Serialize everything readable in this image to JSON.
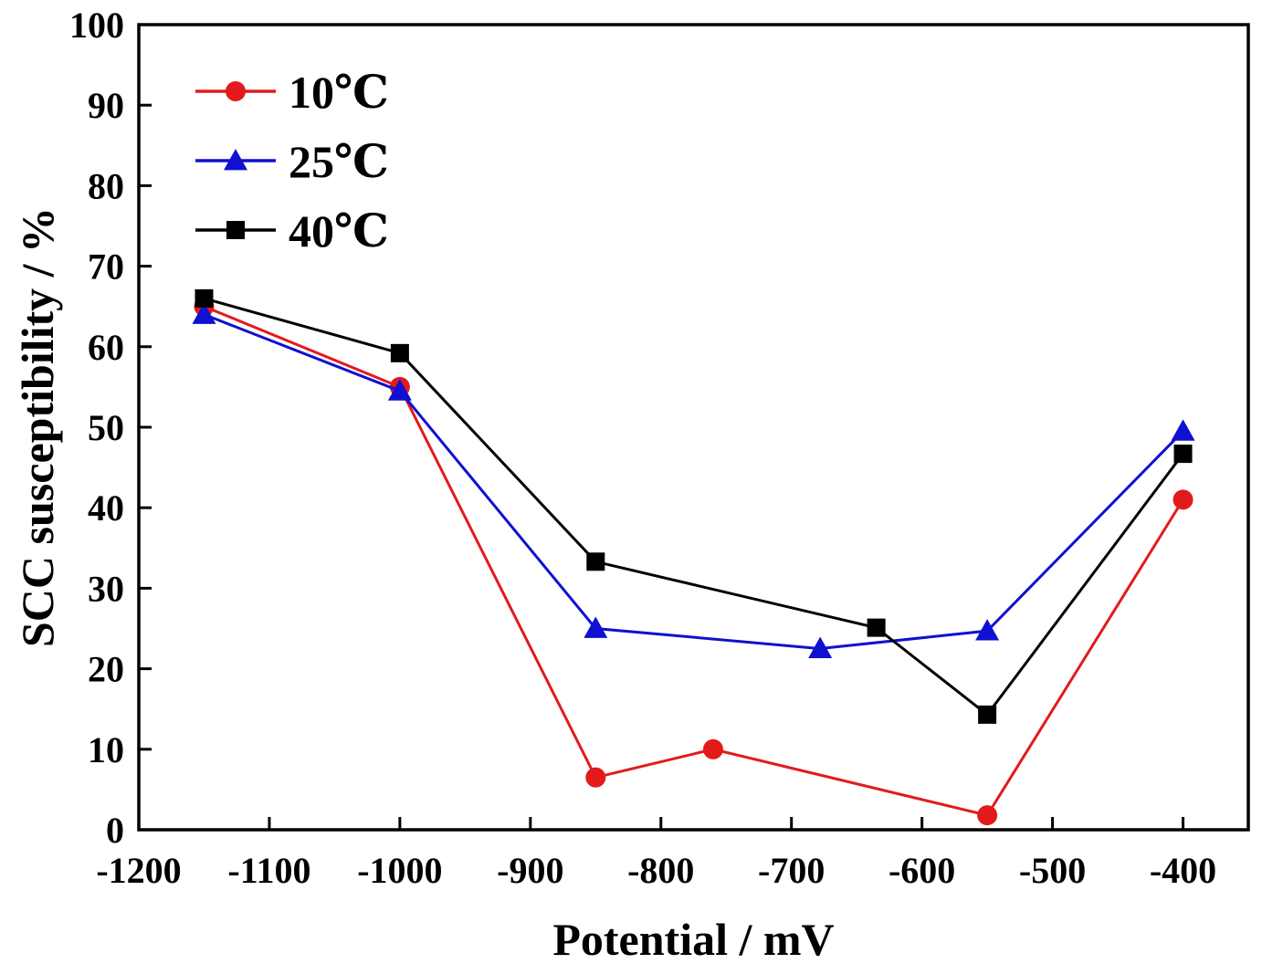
{
  "chart_data": {
    "type": "line",
    "title": "",
    "xlabel": "Potential / mV",
    "ylabel": "SCC susceptibility / %",
    "xlim": [
      -1200,
      -350
    ],
    "ylim": [
      0,
      100
    ],
    "xticks": [
      -1200,
      -1100,
      -1000,
      -900,
      -800,
      -700,
      -600,
      -500,
      -400
    ],
    "yticks": [
      0,
      10,
      20,
      30,
      40,
      50,
      60,
      70,
      80,
      90,
      100
    ],
    "legend_position": "top-left",
    "series": [
      {
        "name": "10℃",
        "color": "#e31a1c",
        "marker": "circle",
        "x": [
          -1150,
          -1000,
          -850,
          -760,
          -550,
          -400
        ],
        "y": [
          65,
          55,
          6.5,
          10,
          1.8,
          41
        ]
      },
      {
        "name": "25℃",
        "color": "#1010d0",
        "marker": "triangle",
        "x": [
          -1150,
          -1000,
          -850,
          -678,
          -550,
          -400
        ],
        "y": [
          64,
          54.5,
          25,
          22.5,
          24.7,
          49.5
        ]
      },
      {
        "name": "40℃",
        "color": "#000000",
        "marker": "square",
        "x": [
          -1150,
          -1000,
          -850,
          -635,
          -550,
          -400
        ],
        "y": [
          66,
          59.2,
          33.3,
          25.1,
          14.3,
          46.7
        ]
      }
    ]
  }
}
